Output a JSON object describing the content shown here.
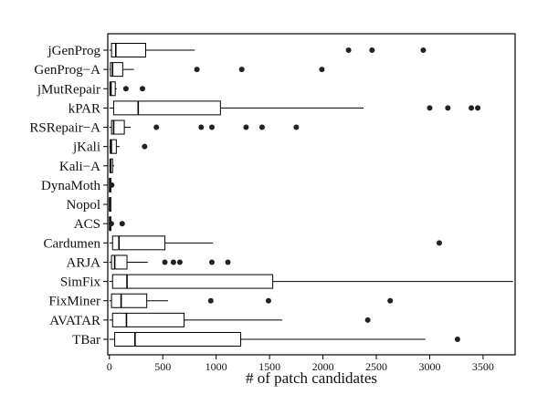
{
  "chart_data": {
    "type": "boxplot",
    "orientation": "horizontal",
    "xlabel": "# of patch candidates",
    "ylabel": "",
    "title": "",
    "xlim": [
      -15,
      3800
    ],
    "xticks": [
      0,
      500,
      1000,
      1500,
      2000,
      2500,
      3000,
      3500
    ],
    "grid": false,
    "categories": [
      "jGenProg",
      "GenProg−A",
      "jMutRepair",
      "kPAR",
      "RSRepair−A",
      "jKali",
      "Kali−A",
      "DynaMoth",
      "Nopol",
      "ACS",
      "Cardumen",
      "ARJA",
      "SimFix",
      "FixMiner",
      "AVATAR",
      "TBar"
    ],
    "boxes": [
      {
        "name": "jGenProg",
        "min": 0,
        "q1": 20,
        "median": 60,
        "q3": 340,
        "max": 800,
        "outliers": [
          2240,
          2460,
          2940
        ]
      },
      {
        "name": "GenProg−A",
        "min": 0,
        "q1": 10,
        "median": 30,
        "q3": 125,
        "max": 230,
        "outliers": [
          820,
          1240,
          1990
        ]
      },
      {
        "name": "jMutRepair",
        "min": 0,
        "q1": 5,
        "median": 15,
        "q3": 55,
        "max": 70,
        "outliers": [
          155,
          310
        ]
      },
      {
        "name": "kPAR",
        "min": 0,
        "q1": 40,
        "median": 270,
        "q3": 1040,
        "max": 2380,
        "outliers": [
          3000,
          3170,
          3390,
          3450
        ]
      },
      {
        "name": "RSRepair−A",
        "min": 0,
        "q1": 20,
        "median": 40,
        "q3": 140,
        "max": 200,
        "outliers": [
          440,
          860,
          960,
          1280,
          1430,
          1750
        ]
      },
      {
        "name": "jKali",
        "min": 0,
        "q1": 8,
        "median": 18,
        "q3": 65,
        "max": 95,
        "outliers": [
          330
        ]
      },
      {
        "name": "Kali−A",
        "min": 0,
        "q1": 5,
        "median": 12,
        "q3": 30,
        "max": 45,
        "outliers": []
      },
      {
        "name": "DynaMoth",
        "min": 0,
        "q1": 1,
        "median": 3,
        "q3": 8,
        "max": 15,
        "outliers": [
          22
        ]
      },
      {
        "name": "Nopol",
        "min": 0,
        "q1": 1,
        "median": 2,
        "q3": 4,
        "max": 7,
        "outliers": []
      },
      {
        "name": "ACS",
        "min": 0,
        "q1": 1,
        "median": 3,
        "q3": 10,
        "max": 20,
        "outliers": [
          18,
          120
        ]
      },
      {
        "name": "Cardumen",
        "min": 0,
        "q1": 30,
        "median": 90,
        "q3": 520,
        "max": 970,
        "outliers": [
          3090
        ]
      },
      {
        "name": "ARJA",
        "min": 0,
        "q1": 20,
        "median": 50,
        "q3": 165,
        "max": 360,
        "outliers": [
          520,
          600,
          660,
          960,
          1110
        ]
      },
      {
        "name": "SimFix",
        "min": 0,
        "q1": 30,
        "median": 165,
        "q3": 1530,
        "max": 3780,
        "outliers": []
      },
      {
        "name": "FixMiner",
        "min": 0,
        "q1": 20,
        "median": 110,
        "q3": 350,
        "max": 550,
        "outliers": [
          950,
          1490,
          2630
        ]
      },
      {
        "name": "AVATAR",
        "min": 0,
        "q1": 30,
        "median": 160,
        "q3": 700,
        "max": 1620,
        "outliers": [
          2420
        ]
      },
      {
        "name": "TBar",
        "min": 0,
        "q1": 50,
        "median": 240,
        "q3": 1230,
        "max": 2960,
        "outliers": [
          3260
        ]
      }
    ]
  }
}
